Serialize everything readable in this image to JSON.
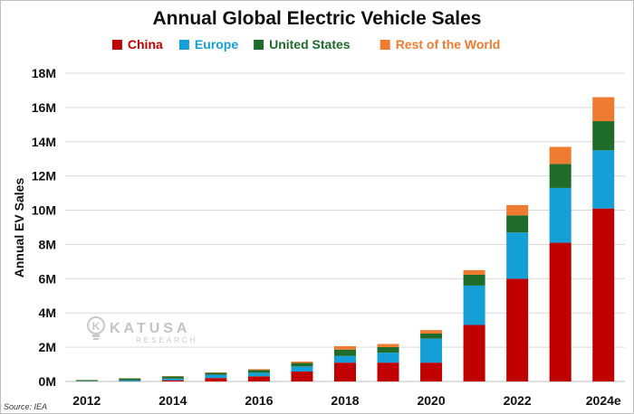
{
  "chart_data": {
    "type": "bar",
    "stacked": true,
    "title": "Annual Global Electric Vehicle Sales",
    "ylabel": "Annual EV Sales",
    "ylim": [
      0,
      18000000
    ],
    "y_ticks": [
      0,
      2000000,
      4000000,
      6000000,
      8000000,
      10000000,
      12000000,
      14000000,
      16000000,
      18000000
    ],
    "y_tick_labels": [
      "0M",
      "2M",
      "4M",
      "6M",
      "8M",
      "10M",
      "12M",
      "14M",
      "16M",
      "18M"
    ],
    "grid": true,
    "legend_position": "top",
    "categories": [
      "2012",
      "2013",
      "2014",
      "2015",
      "2016",
      "2017",
      "2018",
      "2019",
      "2020",
      "2021",
      "2022",
      "2023",
      "2024e"
    ],
    "x_tick_labels_shown": [
      "2012",
      "2014",
      "2016",
      "2018",
      "2020",
      "2022",
      "2024e"
    ],
    "series": [
      {
        "name": "China",
        "color": "#C00000",
        "values": [
          10000,
          15000,
          70000,
          200000,
          300000,
          580000,
          1100000,
          1100000,
          1100000,
          3300000,
          6000000,
          8100000,
          10100000
        ]
      },
      {
        "name": "Europe",
        "color": "#149FD6",
        "values": [
          20000,
          65000,
          100000,
          190000,
          210000,
          300000,
          390000,
          580000,
          1400000,
          2300000,
          2700000,
          3200000,
          3400000
        ]
      },
      {
        "name": "United States",
        "color": "#1E6B2A",
        "values": [
          50000,
          100000,
          120000,
          110000,
          160000,
          200000,
          370000,
          330000,
          300000,
          630000,
          1000000,
          1400000,
          1700000
        ]
      },
      {
        "name": "Rest of the World",
        "color": "#EE7B30",
        "values": [
          5000,
          10000,
          20000,
          30000,
          50000,
          80000,
          200000,
          180000,
          200000,
          270000,
          600000,
          1000000,
          1400000
        ]
      }
    ]
  },
  "watermark": {
    "name": "KATUSA",
    "subtitle": "RESEARCH",
    "icon": "lightbulb-k-icon"
  },
  "source": "Source: IEA"
}
